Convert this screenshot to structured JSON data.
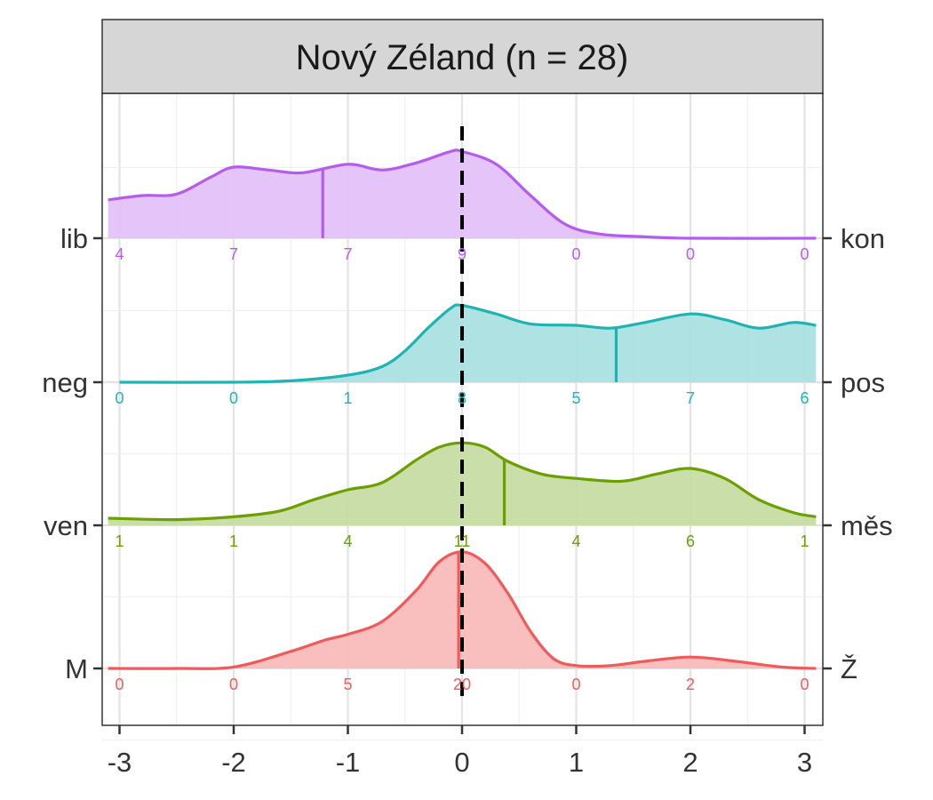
{
  "chart_data": {
    "type": "ridgeline-density",
    "title": "Nový Zéland (n = 28)",
    "xlim": [
      -3.1,
      3.1
    ],
    "x_ticks": [
      "-3",
      "-2",
      "-1",
      "0",
      "1",
      "2",
      "3"
    ],
    "x_tick_values": [
      -3,
      -2,
      -1,
      0,
      1,
      2,
      3
    ],
    "count_positions": [
      -3,
      -2,
      -1,
      0,
      1,
      2,
      3
    ],
    "reference_line_x": 0,
    "grid": true,
    "series": [
      {
        "left_label": "M",
        "right_label": "Ž",
        "color": "#F05A5A",
        "fill": "#F8B8B8",
        "mean": -0.03,
        "counts": [
          "0",
          "0",
          "5",
          "20",
          "0",
          "2",
          "0"
        ],
        "density": [
          [
            -3.1,
            0
          ],
          [
            -2.5,
            0
          ],
          [
            -2.0,
            0.01
          ],
          [
            -1.5,
            0.12
          ],
          [
            -1.2,
            0.2
          ],
          [
            -1.0,
            0.24
          ],
          [
            -0.7,
            0.33
          ],
          [
            -0.4,
            0.55
          ],
          [
            -0.2,
            0.75
          ],
          [
            0.0,
            0.82
          ],
          [
            0.2,
            0.74
          ],
          [
            0.4,
            0.53
          ],
          [
            0.6,
            0.26
          ],
          [
            0.8,
            0.07
          ],
          [
            1.0,
            0.02
          ],
          [
            1.3,
            0.02
          ],
          [
            1.6,
            0.05
          ],
          [
            2.0,
            0.08
          ],
          [
            2.4,
            0.05
          ],
          [
            2.8,
            0.01
          ],
          [
            3.1,
            0
          ]
        ]
      },
      {
        "left_label": "ven",
        "right_label": "měs",
        "color": "#6BA000",
        "fill": "#C4DAA0",
        "mean": 0.37,
        "counts": [
          "1",
          "1",
          "4",
          "11",
          "4",
          "6",
          "1"
        ],
        "density": [
          [
            -3.1,
            0.05
          ],
          [
            -2.5,
            0.04
          ],
          [
            -2.0,
            0.06
          ],
          [
            -1.6,
            0.1
          ],
          [
            -1.3,
            0.18
          ],
          [
            -1.0,
            0.25
          ],
          [
            -0.7,
            0.3
          ],
          [
            -0.4,
            0.46
          ],
          [
            -0.2,
            0.55
          ],
          [
            0.0,
            0.58
          ],
          [
            0.2,
            0.55
          ],
          [
            0.4,
            0.45
          ],
          [
            0.7,
            0.36
          ],
          [
            1.0,
            0.33
          ],
          [
            1.4,
            0.31
          ],
          [
            1.7,
            0.36
          ],
          [
            2.0,
            0.4
          ],
          [
            2.3,
            0.33
          ],
          [
            2.6,
            0.18
          ],
          [
            2.9,
            0.09
          ],
          [
            3.1,
            0.06
          ]
        ]
      },
      {
        "left_label": "neg",
        "right_label": "pos",
        "color": "#1FB3B3",
        "fill": "#A6E0E0",
        "mean": 1.35,
        "counts": [
          "0",
          "0",
          "1",
          "8",
          "5",
          "7",
          "6"
        ],
        "density": [
          [
            -3.0,
            0
          ],
          [
            -2.0,
            0
          ],
          [
            -1.5,
            0.01
          ],
          [
            -1.0,
            0.05
          ],
          [
            -0.7,
            0.11
          ],
          [
            -0.5,
            0.22
          ],
          [
            -0.3,
            0.38
          ],
          [
            -0.1,
            0.52
          ],
          [
            0.0,
            0.54
          ],
          [
            0.3,
            0.48
          ],
          [
            0.6,
            0.41
          ],
          [
            1.0,
            0.4
          ],
          [
            1.3,
            0.38
          ],
          [
            1.6,
            0.42
          ],
          [
            2.0,
            0.48
          ],
          [
            2.3,
            0.44
          ],
          [
            2.6,
            0.38
          ],
          [
            2.9,
            0.42
          ],
          [
            3.1,
            0.4
          ]
        ]
      },
      {
        "left_label": "lib",
        "right_label": "kon",
        "color": "#B45CF0",
        "fill": "#E2BEF8",
        "mean": -1.22,
        "counts": [
          "4",
          "7",
          "7",
          "9",
          "0",
          "0",
          "0"
        ],
        "density": [
          [
            -3.1,
            0.27
          ],
          [
            -2.8,
            0.3
          ],
          [
            -2.5,
            0.31
          ],
          [
            -2.2,
            0.43
          ],
          [
            -2.0,
            0.5
          ],
          [
            -1.7,
            0.48
          ],
          [
            -1.4,
            0.46
          ],
          [
            -1.0,
            0.52
          ],
          [
            -0.7,
            0.48
          ],
          [
            -0.4,
            0.53
          ],
          [
            -0.1,
            0.61
          ],
          [
            0.0,
            0.61
          ],
          [
            0.3,
            0.52
          ],
          [
            0.6,
            0.3
          ],
          [
            0.9,
            0.1
          ],
          [
            1.2,
            0.03
          ],
          [
            1.6,
            0.01
          ],
          [
            2.0,
            0
          ],
          [
            3.1,
            0
          ]
        ]
      }
    ]
  }
}
